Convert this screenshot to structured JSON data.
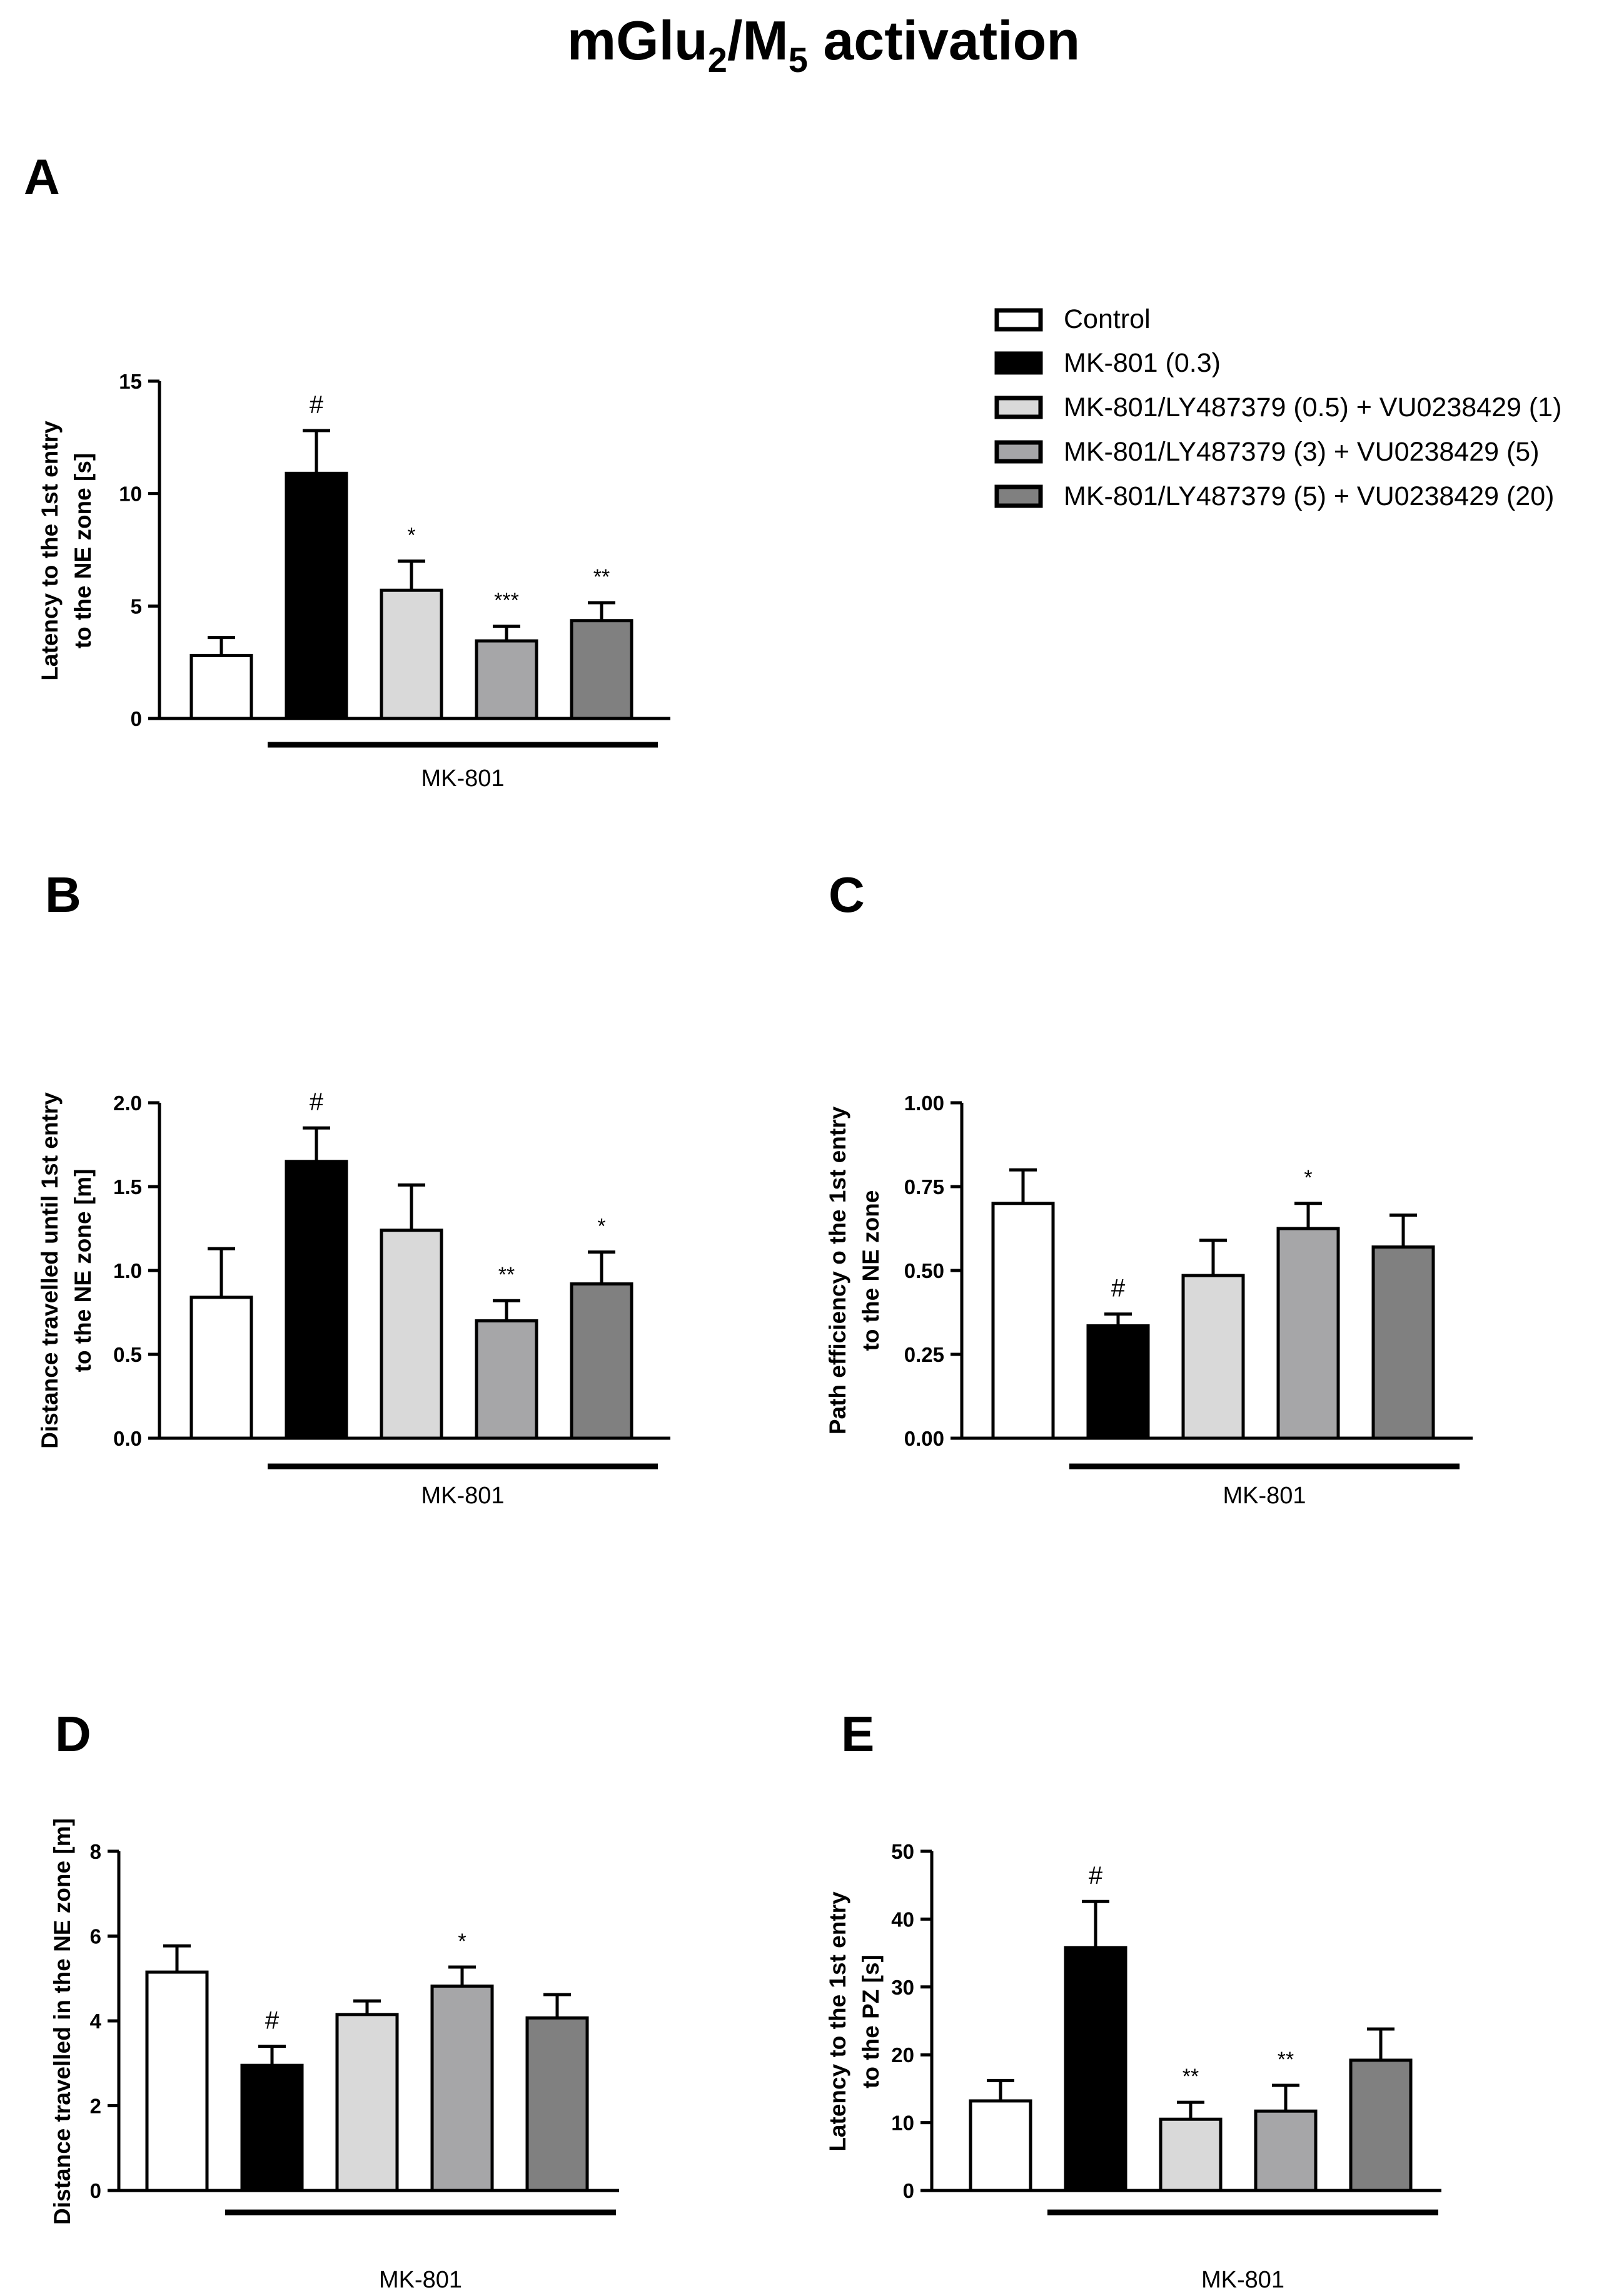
{
  "figure": {
    "title_main": "mGlu",
    "title_sub1": "2",
    "title_mid": "/M",
    "title_sub2": "5",
    "title_tail": " activation"
  },
  "legend": [
    {
      "label": "Control",
      "color": "#ffffff"
    },
    {
      "label": "MK-801 (0.3)",
      "color": "#000000"
    },
    {
      "label": "MK-801/LY487379 (0.5) + VU0238429 (1)",
      "color": "#d9d9d9"
    },
    {
      "label": "MK-801/LY487379 (3) + VU0238429 (5)",
      "color": "#a6a6a8"
    },
    {
      "label": "MK-801/LY487379 (5) + VU0238429 (20)",
      "color": "#808080"
    }
  ],
  "chart_data": [
    {
      "panel": "A",
      "type": "bar",
      "ylabel_line1": "Latency to the 1st entry",
      "ylabel_line2": "to the NE zone [s]",
      "group_label": "MK-801",
      "ylim": [
        0,
        15
      ],
      "yticks": [
        "0",
        "5",
        "10",
        "15"
      ],
      "values": [
        2.8,
        10.9,
        5.7,
        3.45,
        4.35
      ],
      "errors": [
        0.8,
        1.9,
        1.3,
        0.65,
        0.8
      ],
      "annotations": [
        "",
        "#",
        "*",
        "***",
        "**"
      ]
    },
    {
      "panel": "B",
      "type": "bar",
      "ylabel_line1": "Distance travelled until 1st entry",
      "ylabel_line2": "to the NE zone [m]",
      "group_label": "MK-801",
      "ylim": [
        0,
        2.0
      ],
      "yticks": [
        "0.0",
        "0.5",
        "1.0",
        "1.5",
        "2.0"
      ],
      "values": [
        0.84,
        1.65,
        1.24,
        0.7,
        0.92
      ],
      "errors": [
        0.29,
        0.2,
        0.27,
        0.12,
        0.19
      ],
      "annotations": [
        "",
        "#",
        "",
        "**",
        "*"
      ]
    },
    {
      "panel": "C",
      "type": "bar",
      "ylabel_line1": "Path efficiency o the 1st entry",
      "ylabel_line2": "to the NE zone",
      "group_label": "MK-801",
      "ylim": [
        0,
        1.0
      ],
      "yticks": [
        "0.00",
        "0.25",
        "0.50",
        "0.75",
        "1.00"
      ],
      "values": [
        0.7,
        0.335,
        0.485,
        0.625,
        0.57
      ],
      "errors": [
        0.1,
        0.035,
        0.105,
        0.075,
        0.095
      ],
      "annotations": [
        "",
        "#",
        "",
        "*",
        ""
      ]
    },
    {
      "panel": "D",
      "type": "bar",
      "ylabel_line1": "Distance travelled in the NE zone [m]",
      "ylabel_line2": "",
      "group_label": "MK-801",
      "ylim": [
        0,
        8
      ],
      "yticks": [
        "0",
        "2",
        "4",
        "6",
        "8"
      ],
      "values": [
        5.15,
        2.95,
        4.15,
        4.82,
        4.07
      ],
      "errors": [
        0.62,
        0.45,
        0.32,
        0.45,
        0.55
      ],
      "annotations": [
        "",
        "#",
        "",
        "*",
        ""
      ]
    },
    {
      "panel": "E",
      "type": "bar",
      "ylabel_line1": "Latency to the 1st entry",
      "ylabel_line2": "to the PZ [s]",
      "group_label": "MK-801",
      "ylim": [
        0,
        50
      ],
      "yticks": [
        "0",
        "10",
        "20",
        "30",
        "40",
        "50"
      ],
      "values": [
        13.2,
        35.8,
        10.5,
        11.7,
        19.2
      ],
      "errors": [
        3.0,
        6.8,
        2.5,
        3.8,
        4.6
      ],
      "annotations": [
        "",
        "#",
        "**",
        "**",
        ""
      ]
    }
  ]
}
